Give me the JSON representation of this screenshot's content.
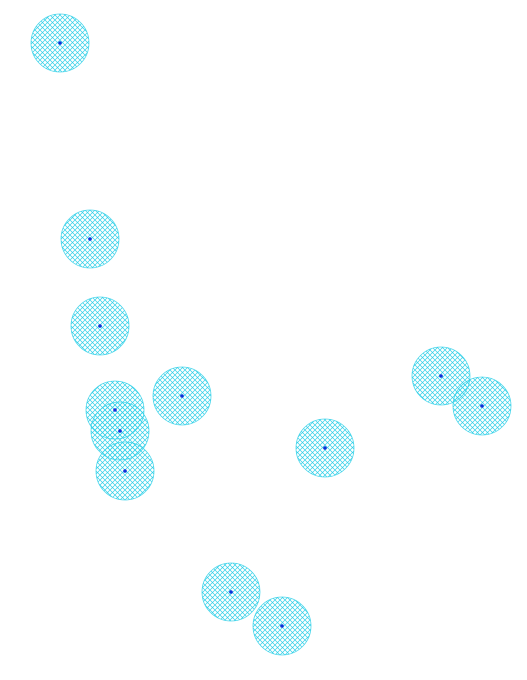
{
  "map": {
    "colors": {
      "background": "#ffffff",
      "buffer_hatch": "#2fd0e8",
      "point": "#1030d8"
    },
    "buffer_fill": "cross-hatch",
    "features": [
      {
        "id": 1
      },
      {
        "id": 2
      },
      {
        "id": 3
      },
      {
        "id": 4
      },
      {
        "id": 5
      },
      {
        "id": 6
      },
      {
        "id": 7
      },
      {
        "id": 8
      },
      {
        "id": 9
      },
      {
        "id": 10
      },
      {
        "id": 11
      },
      {
        "id": 12
      },
      {
        "id": 13
      }
    ]
  }
}
